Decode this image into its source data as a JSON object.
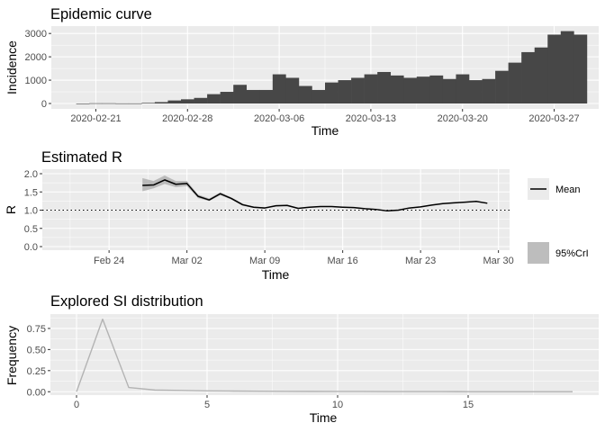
{
  "chart_data": [
    {
      "id": "incidence",
      "type": "bar",
      "title": "Epidemic curve",
      "xlabel": "Time",
      "ylabel": "Incidence",
      "ylim": [
        0,
        3200
      ],
      "yticks": [
        0,
        1000,
        2000,
        3000
      ],
      "xticks": [
        "2020-02-21",
        "2020-02-28",
        "2020-03-06",
        "2020-03-13",
        "2020-03-20",
        "2020-03-27"
      ],
      "grid": true,
      "color": "#474747",
      "dates": [
        "2020-02-20",
        "2020-02-21",
        "2020-02-22",
        "2020-02-23",
        "2020-02-24",
        "2020-02-25",
        "2020-02-26",
        "2020-02-27",
        "2020-02-28",
        "2020-02-29",
        "2020-03-01",
        "2020-03-02",
        "2020-03-03",
        "2020-03-04",
        "2020-03-05",
        "2020-03-06",
        "2020-03-07",
        "2020-03-08",
        "2020-03-09",
        "2020-03-10",
        "2020-03-11",
        "2020-03-12",
        "2020-03-13",
        "2020-03-14",
        "2020-03-15",
        "2020-03-16",
        "2020-03-17",
        "2020-03-18",
        "2020-03-19",
        "2020-03-20",
        "2020-03-21",
        "2020-03-22",
        "2020-03-23",
        "2020-03-24",
        "2020-03-25",
        "2020-03-26",
        "2020-03-27",
        "2020-03-28",
        "2020-03-29"
      ],
      "values": [
        0,
        10,
        10,
        5,
        5,
        25,
        60,
        130,
        180,
        240,
        400,
        500,
        800,
        580,
        580,
        1250,
        1100,
        750,
        580,
        900,
        1000,
        1100,
        1250,
        1350,
        1200,
        1100,
        1150,
        1200,
        1050,
        1250,
        1000,
        1050,
        1400,
        1750,
        2200,
        2400,
        2950,
        3100,
        2950
      ]
    },
    {
      "id": "estimated-r",
      "type": "line",
      "title": "Estimated R",
      "xlabel": "Time",
      "ylabel": "R",
      "ylim": [
        0,
        2
      ],
      "yticks": [
        "0.0",
        "0.5",
        "1.0",
        "1.5",
        "2.0"
      ],
      "xticks": [
        "Feb 24",
        "Mar 02",
        "Mar 09",
        "Mar 16",
        "Mar 23",
        "Mar 30"
      ],
      "reference_line": 1.0,
      "legend": [
        "Mean",
        "95%CrI"
      ],
      "legend_position": "right",
      "dates": [
        "2020-02-27",
        "2020-02-28",
        "2020-02-29",
        "2020-03-01",
        "2020-03-02",
        "2020-03-03",
        "2020-03-04",
        "2020-03-05",
        "2020-03-06",
        "2020-03-07",
        "2020-03-08",
        "2020-03-09",
        "2020-03-10",
        "2020-03-11",
        "2020-03-12",
        "2020-03-13",
        "2020-03-14",
        "2020-03-15",
        "2020-03-16",
        "2020-03-17",
        "2020-03-18",
        "2020-03-19",
        "2020-03-20",
        "2020-03-21",
        "2020-03-22",
        "2020-03-23",
        "2020-03-24",
        "2020-03-25",
        "2020-03-26",
        "2020-03-27",
        "2020-03-28",
        "2020-03-29"
      ],
      "mean": [
        1.68,
        1.69,
        1.83,
        1.71,
        1.73,
        1.38,
        1.28,
        1.45,
        1.32,
        1.15,
        1.08,
        1.06,
        1.12,
        1.13,
        1.05,
        1.08,
        1.1,
        1.1,
        1.08,
        1.07,
        1.04,
        1.02,
        0.98,
        1.0,
        1.06,
        1.09,
        1.14,
        1.18,
        1.2,
        1.22,
        1.24,
        1.19
      ],
      "lower": [
        1.52,
        1.6,
        1.72,
        1.63,
        1.66,
        1.33,
        1.25,
        1.41,
        1.29,
        1.12,
        1.06,
        1.04,
        1.1,
        1.11,
        1.04,
        1.07,
        1.09,
        1.09,
        1.07,
        1.06,
        1.03,
        1.01,
        0.97,
        0.99,
        1.05,
        1.08,
        1.13,
        1.17,
        1.19,
        1.21,
        1.23,
        1.18
      ],
      "upper": [
        1.88,
        1.8,
        1.95,
        1.8,
        1.8,
        1.43,
        1.32,
        1.49,
        1.35,
        1.18,
        1.1,
        1.08,
        1.14,
        1.15,
        1.06,
        1.09,
        1.11,
        1.11,
        1.09,
        1.08,
        1.05,
        1.03,
        0.99,
        1.01,
        1.07,
        1.1,
        1.15,
        1.19,
        1.21,
        1.23,
        1.25,
        1.2
      ]
    },
    {
      "id": "si-distribution",
      "type": "line",
      "title": "Explored SI distribution",
      "xlabel": "Time",
      "ylabel": "Frequency",
      "ylim": [
        -0.04,
        0.92
      ],
      "xlim": [
        -1,
        20
      ],
      "yticks": [
        "0.00",
        "0.25",
        "0.50",
        "0.75"
      ],
      "xticks": [
        "0",
        "5",
        "10",
        "15"
      ],
      "color": "#b3b3b3",
      "x": [
        0,
        1,
        2,
        3,
        4,
        5,
        6,
        7,
        8,
        9,
        10,
        11,
        12,
        13,
        14,
        15,
        16,
        17,
        18,
        19
      ],
      "y": [
        0,
        0.86,
        0.05,
        0.02,
        0.015,
        0.01,
        0.008,
        0.006,
        0.005,
        0.004,
        0.003,
        0.003,
        0.002,
        0.002,
        0.002,
        0.001,
        0.001,
        0.001,
        0.001,
        0.001
      ]
    }
  ]
}
